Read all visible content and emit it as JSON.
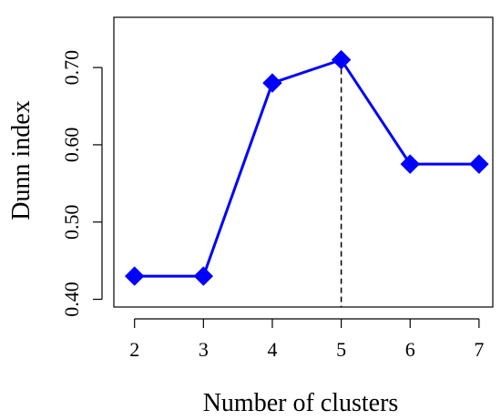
{
  "chart_data": {
    "type": "line",
    "title": "",
    "xlabel": "Number of clusters",
    "ylabel": "Dunn index",
    "x": [
      2,
      3,
      4,
      5,
      6,
      7
    ],
    "series": [
      {
        "values": [
          0.43,
          0.43,
          0.68,
          0.71,
          0.575,
          0.575
        ],
        "color": "#0000ff",
        "marker": "diamond"
      }
    ],
    "x_ticks": [
      "2",
      "3",
      "4",
      "5",
      "6",
      "7"
    ],
    "y_ticks": [
      "0.40",
      "0.50",
      "0.60",
      "0.70"
    ],
    "xlim": [
      1.7,
      7.2
    ],
    "ylim": [
      0.39,
      0.765
    ],
    "grid": false,
    "annotation": {
      "type": "vertical-dashed-line",
      "x": 5,
      "y_top": 0.71
    }
  }
}
